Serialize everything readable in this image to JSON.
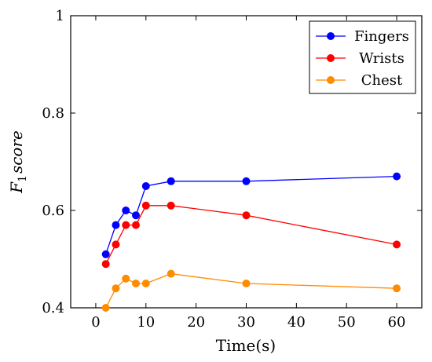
{
  "chart_data": {
    "type": "line",
    "title": "",
    "xlabel": "Time(s)",
    "ylabel_main": "F",
    "ylabel_sub": "1",
    "ylabel_rest": "score",
    "xlim": [
      -5,
      65
    ],
    "ylim": [
      0.4,
      1.0
    ],
    "xticks": [
      0,
      10,
      20,
      30,
      40,
      50,
      60
    ],
    "xtick_labels": [
      "0",
      "10",
      "20",
      "30",
      "40",
      "50",
      "60"
    ],
    "yticks": [
      0.4,
      0.6,
      0.8,
      1.0
    ],
    "ytick_labels": [
      "0.4",
      "0.6",
      "0.8",
      "1"
    ],
    "grid": false,
    "legend_position": "top-right",
    "x": [
      2,
      4,
      6,
      8,
      10,
      15,
      30,
      60
    ],
    "series": [
      {
        "name": "Fingers",
        "color": "#0000ff",
        "values": [
          0.51,
          0.57,
          0.6,
          0.59,
          0.65,
          0.66,
          0.66,
          0.67
        ]
      },
      {
        "name": "Wrists",
        "color": "#ff0000",
        "values": [
          0.49,
          0.53,
          0.57,
          0.57,
          0.61,
          0.61,
          0.59,
          0.53
        ]
      },
      {
        "name": "Chest",
        "color": "#ff8c00",
        "values": [
          0.4,
          0.44,
          0.46,
          0.45,
          0.45,
          0.47,
          0.45,
          0.44
        ]
      }
    ]
  }
}
